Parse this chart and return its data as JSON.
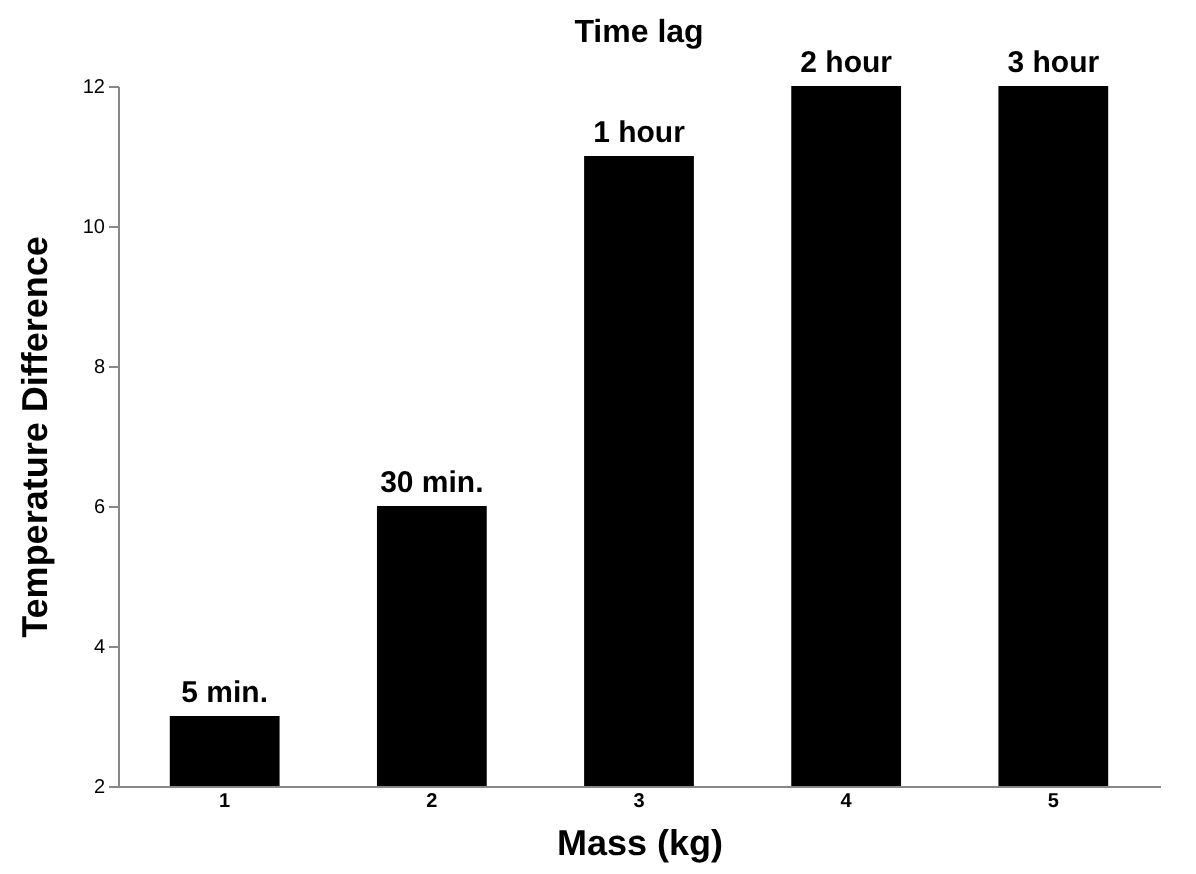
{
  "chart_data": {
    "type": "bar",
    "title": "Time lag",
    "xlabel": "Mass (kg)",
    "ylabel": "Temperature Difference",
    "categories": [
      "1",
      "2",
      "3",
      "4",
      "5"
    ],
    "values": [
      3,
      6,
      11,
      12,
      12
    ],
    "annotations": [
      {
        "text": "5 min.",
        "x": "1",
        "y": 3
      },
      {
        "text": "30 min.",
        "x": "2",
        "y": 6
      },
      {
        "text": "1 hour",
        "x": "3",
        "y": 11
      },
      {
        "text": "2 hour",
        "x": "4",
        "y": 12
      },
      {
        "text": "3 hour",
        "x": "5",
        "y": 12
      }
    ],
    "color": "#000000",
    "ylim": [
      2,
      12
    ],
    "yticks": [
      2,
      4,
      6,
      8,
      10,
      12
    ],
    "grid": false
  }
}
